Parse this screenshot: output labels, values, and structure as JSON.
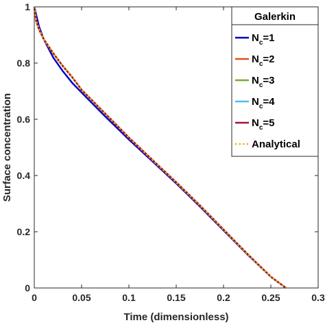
{
  "chart_data": {
    "type": "line",
    "xlabel": "Time (dimensionless)",
    "ylabel": "Surface concentration",
    "xlim": [
      0,
      0.3
    ],
    "ylim": [
      0,
      1
    ],
    "xticks": [
      "0",
      "0.05",
      "0.1",
      "0.15",
      "0.2",
      "0.25",
      "0.3"
    ],
    "yticks": [
      "0",
      "0.2",
      "0.4",
      "0.6",
      "0.8",
      "1"
    ],
    "legend": {
      "title": "Galerkin",
      "location": "top-right"
    },
    "grid": false,
    "series": [
      {
        "name": "N_c=1",
        "label_main": "N",
        "label_sub": "c",
        "label_rest": "=1",
        "color": "#0000cc",
        "style": "solid",
        "x": [
          0,
          0.005,
          0.01,
          0.02,
          0.03,
          0.04,
          0.05,
          0.075,
          0.1,
          0.125,
          0.15,
          0.175,
          0.2,
          0.225,
          0.25,
          0.266
        ],
        "y": [
          1.0,
          0.93,
          0.885,
          0.82,
          0.772,
          0.73,
          0.695,
          0.61,
          0.528,
          0.45,
          0.372,
          0.29,
          0.205,
          0.12,
          0.04,
          0.0
        ]
      },
      {
        "name": "N_c=2",
        "label_main": "N",
        "label_sub": "c",
        "label_rest": "=2",
        "color": "#d95319",
        "style": "solid",
        "x": [
          0,
          0.002,
          0.005,
          0.01,
          0.02,
          0.03,
          0.04,
          0.05,
          0.075,
          0.1,
          0.125,
          0.15,
          0.175,
          0.2,
          0.225,
          0.25,
          0.266
        ],
        "y": [
          1.0,
          0.95,
          0.92,
          0.885,
          0.835,
          0.79,
          0.75,
          0.705,
          0.62,
          0.535,
          0.455,
          0.376,
          0.294,
          0.208,
          0.122,
          0.04,
          0.0
        ]
      },
      {
        "name": "N_c=3",
        "label_main": "N",
        "label_sub": "c",
        "label_rest": "=3",
        "color": "#77ac30",
        "style": "solid",
        "x": [
          0,
          0.002,
          0.005,
          0.01,
          0.02,
          0.03,
          0.04,
          0.05,
          0.075,
          0.1,
          0.125,
          0.15,
          0.175,
          0.2,
          0.225,
          0.25,
          0.266
        ],
        "y": [
          1.0,
          0.95,
          0.92,
          0.885,
          0.835,
          0.79,
          0.75,
          0.705,
          0.62,
          0.535,
          0.455,
          0.376,
          0.294,
          0.208,
          0.122,
          0.04,
          0.0
        ]
      },
      {
        "name": "N_c=4",
        "label_main": "N",
        "label_sub": "c",
        "label_rest": "=4",
        "color": "#4dbeee",
        "style": "solid",
        "x": [
          0,
          0.002,
          0.005,
          0.01,
          0.02,
          0.03,
          0.04,
          0.05,
          0.075,
          0.1,
          0.125,
          0.15,
          0.175,
          0.2,
          0.225,
          0.25,
          0.266
        ],
        "y": [
          1.0,
          0.95,
          0.92,
          0.885,
          0.835,
          0.79,
          0.75,
          0.705,
          0.62,
          0.535,
          0.455,
          0.376,
          0.294,
          0.208,
          0.122,
          0.04,
          0.0
        ]
      },
      {
        "name": "N_c=5",
        "label_main": "N",
        "label_sub": "c",
        "label_rest": "=5",
        "color": "#a2142f",
        "style": "solid",
        "x": [
          0,
          0.002,
          0.005,
          0.01,
          0.02,
          0.03,
          0.04,
          0.05,
          0.075,
          0.1,
          0.125,
          0.15,
          0.175,
          0.2,
          0.225,
          0.25,
          0.266
        ],
        "y": [
          1.0,
          0.95,
          0.92,
          0.885,
          0.835,
          0.79,
          0.75,
          0.705,
          0.62,
          0.535,
          0.455,
          0.376,
          0.294,
          0.208,
          0.122,
          0.04,
          0.0
        ]
      },
      {
        "name": "Analytical",
        "label_main": "Analytical",
        "label_sub": "",
        "label_rest": "",
        "color": "#edb120",
        "style": "dotted",
        "x": [
          0,
          0.002,
          0.005,
          0.01,
          0.02,
          0.03,
          0.04,
          0.05,
          0.075,
          0.1,
          0.125,
          0.15,
          0.175,
          0.2,
          0.225,
          0.25,
          0.266
        ],
        "y": [
          1.0,
          0.95,
          0.92,
          0.885,
          0.835,
          0.79,
          0.75,
          0.705,
          0.62,
          0.535,
          0.455,
          0.376,
          0.294,
          0.208,
          0.122,
          0.04,
          0.0
        ]
      }
    ]
  }
}
